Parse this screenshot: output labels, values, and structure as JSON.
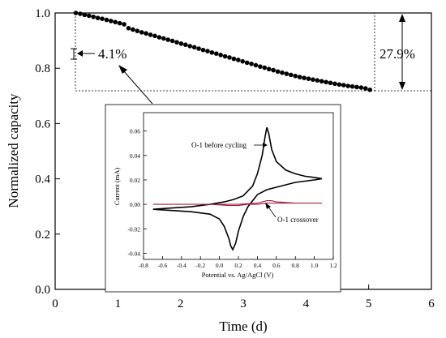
{
  "chart_data": [
    {
      "type": "scatter",
      "xlabel": "Time (d)",
      "ylabel": "Normalized capacity",
      "xlim": [
        0,
        6
      ],
      "ylim": [
        0.0,
        1.0
      ],
      "x_ticks": [
        "0",
        "1",
        "2",
        "3",
        "4",
        "5",
        "6"
      ],
      "y_ticks": [
        "0.0",
        "0.2",
        "0.4",
        "0.6",
        "0.8",
        "1.0"
      ],
      "series": [
        {
          "x": [
            0.33,
            0.4,
            0.47,
            0.54,
            0.61,
            0.68,
            0.75,
            0.82,
            0.89,
            0.96,
            1.03,
            1.1,
            1.17,
            1.24,
            1.31,
            1.38,
            1.45,
            1.52,
            1.59,
            1.66,
            1.73,
            1.8,
            1.87,
            1.94,
            2.01,
            2.08,
            2.15,
            2.22,
            2.29,
            2.36,
            2.43,
            2.5,
            2.57,
            2.64,
            2.71,
            2.78,
            2.85,
            2.92,
            2.99,
            3.06,
            3.13,
            3.2,
            3.27,
            3.34,
            3.41,
            3.48,
            3.55,
            3.62,
            3.69,
            3.76,
            3.83,
            3.9,
            3.97,
            4.04,
            4.11,
            4.18,
            4.25,
            4.32,
            4.39,
            4.46,
            4.53,
            4.6,
            4.67,
            4.74,
            4.81,
            4.88,
            4.95,
            5.02
          ],
          "y": [
            1.0,
            0.997,
            0.993,
            0.99,
            0.986,
            0.982,
            0.979,
            0.975,
            0.971,
            0.967,
            0.963,
            0.959,
            0.945,
            0.94,
            0.935,
            0.93,
            0.926,
            0.921,
            0.917,
            0.912,
            0.908,
            0.903,
            0.899,
            0.894,
            0.889,
            0.885,
            0.88,
            0.876,
            0.871,
            0.866,
            0.862,
            0.857,
            0.853,
            0.848,
            0.843,
            0.839,
            0.834,
            0.83,
            0.825,
            0.82,
            0.816,
            0.811,
            0.806,
            0.802,
            0.797,
            0.793,
            0.788,
            0.784,
            0.78,
            0.776,
            0.772,
            0.768,
            0.765,
            0.762,
            0.759,
            0.756,
            0.753,
            0.75,
            0.747,
            0.744,
            0.741,
            0.739,
            0.736,
            0.734,
            0.732,
            0.73,
            0.727,
            0.722
          ]
        }
      ],
      "annotations": [
        "4.1%",
        "27.9%"
      ]
    },
    {
      "type": "line",
      "xlabel": "Potential vs. Ag/AgCl (V)",
      "ylabel": "Current (mA)",
      "xlim": [
        -0.8,
        1.2
      ],
      "ylim": [
        -0.045,
        0.075
      ],
      "x_ticks": [
        "-0.8",
        "-0.6",
        "-0.4",
        "-0.2",
        "0.0",
        "0.2",
        "0.4",
        "0.6",
        "0.8",
        "1.0",
        "1.2"
      ],
      "y_ticks": [
        "-0.04",
        "-0.02",
        "0.00",
        "0.02",
        "0.04",
        "0.06"
      ],
      "series": [
        {
          "name": "O-1 before cycling",
          "color": "#000000",
          "x": [
            -0.7,
            -0.5,
            -0.3,
            -0.1,
            0.05,
            0.15,
            0.25,
            0.35,
            0.4,
            0.45,
            0.48,
            0.5,
            0.52,
            0.55,
            0.6,
            0.7,
            0.8,
            0.9,
            1.0,
            1.08,
            1.0,
            0.9,
            0.8,
            0.7,
            0.6,
            0.5,
            0.4,
            0.3,
            0.25,
            0.2,
            0.17,
            0.14,
            0.12,
            0.1,
            0.05,
            0.0,
            -0.1,
            -0.3,
            -0.5,
            -0.7
          ],
          "y": [
            -0.004,
            -0.003,
            -0.002,
            0.0,
            0.002,
            0.004,
            0.007,
            0.015,
            0.025,
            0.04,
            0.055,
            0.063,
            0.058,
            0.045,
            0.035,
            0.028,
            0.025,
            0.023,
            0.022,
            0.021,
            0.02,
            0.019,
            0.018,
            0.016,
            0.014,
            0.012,
            0.008,
            -0.002,
            -0.01,
            -0.022,
            -0.032,
            -0.037,
            -0.034,
            -0.028,
            -0.018,
            -0.012,
            -0.008,
            -0.006,
            -0.005,
            -0.004
          ]
        },
        {
          "name": "O-1 crossover",
          "color": "#a3213f",
          "x": [
            -0.7,
            -0.4,
            -0.1,
            0.2,
            0.4,
            0.5,
            0.55,
            0.6,
            0.8,
            1.08,
            0.8,
            0.5,
            0.4,
            0.3,
            0.2,
            0.1,
            -0.1,
            -0.4,
            -0.7
          ],
          "y": [
            0.0,
            0.0,
            0.0,
            0.0,
            0.001,
            0.003,
            0.003,
            0.002,
            0.001,
            0.001,
            0.001,
            0.001,
            0.0,
            0.0,
            -0.001,
            -0.001,
            0.0,
            0.0,
            0.0
          ]
        }
      ]
    }
  ]
}
